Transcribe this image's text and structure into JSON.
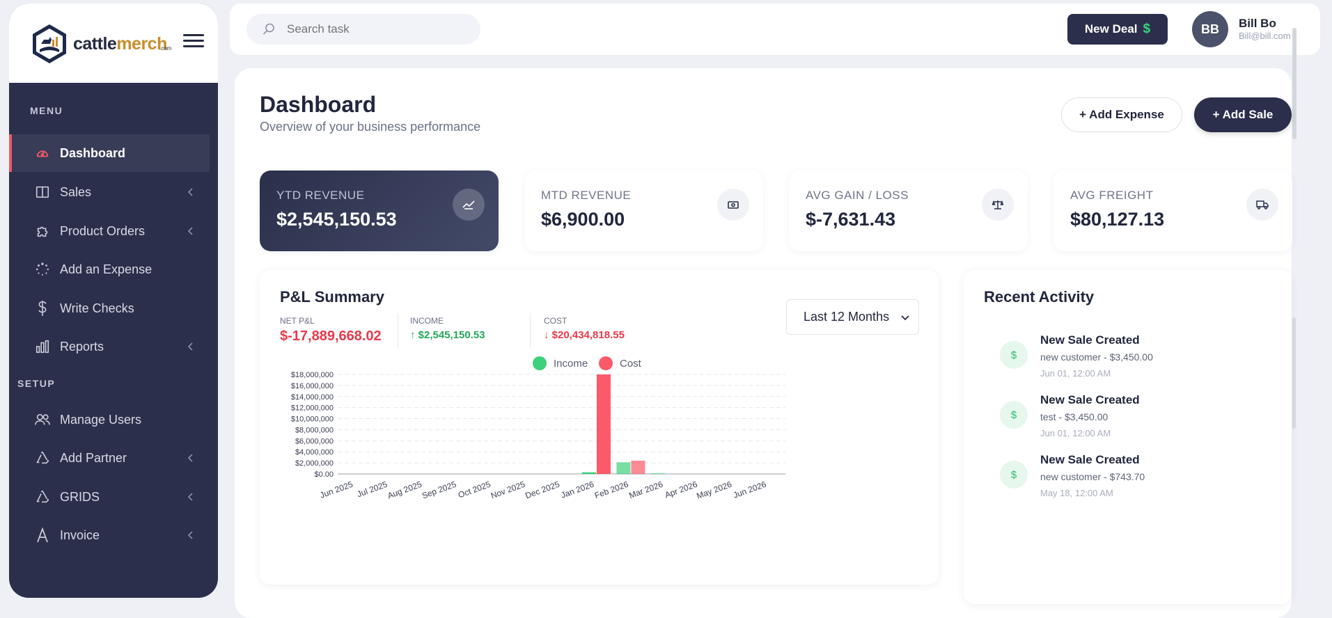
{
  "brand": {
    "name_part1": "cattle",
    "name_part2": "merch",
    "suffix": ".com"
  },
  "sidebar": {
    "menu_label": "MENU",
    "setup_label": "SETUP",
    "items": [
      {
        "label": "Dashboard",
        "icon": "gauge-icon"
      },
      {
        "label": "Sales",
        "icon": "book-icon"
      },
      {
        "label": "Product Orders",
        "icon": "puzzle-icon"
      },
      {
        "label": "Add an Expense",
        "icon": "loader-icon"
      },
      {
        "label": "Write Checks",
        "icon": "dollar-icon"
      },
      {
        "label": "Reports",
        "icon": "bar-chart-icon"
      },
      {
        "label": "Manage Users",
        "icon": "users-icon"
      },
      {
        "label": "Add Partner",
        "icon": "recycle-icon"
      },
      {
        "label": "GRIDS",
        "icon": "recycle-icon"
      },
      {
        "label": "Invoice",
        "icon": "letter-a-icon"
      }
    ]
  },
  "topbar": {
    "search_placeholder": "Search task",
    "new_deal_label": "New Deal",
    "new_deal_symbol": "$",
    "user": {
      "initials": "BB",
      "name": "Bill Bo",
      "email": "Bill@bill.com"
    }
  },
  "page": {
    "title": "Dashboard",
    "subtitle": "Overview of your business performance",
    "add_expense_label": "+ Add Expense",
    "add_sale_label": "+ Add Sale"
  },
  "stats": [
    {
      "label": "YTD REVENUE",
      "value": "$2,545,150.53"
    },
    {
      "label": "MTD REVENUE",
      "value": "$6,900.00"
    },
    {
      "label": "AVG GAIN / LOSS",
      "value": "$-7,631.43"
    },
    {
      "label": "AVG FREIGHT",
      "value": "$80,127.13"
    }
  ],
  "pl": {
    "title": "P&L Summary",
    "net_label": "NET P&L",
    "net_value": "$-17,889,668.02",
    "income_label": "INCOME",
    "income_value": "↑ $2,545,150.53",
    "cost_label": "COST",
    "cost_value": "↓ $20,434,818.55",
    "range_selected": "Last 12 Months"
  },
  "chart_data": {
    "type": "bar",
    "categories": [
      "Jun 2025",
      "Jul 2025",
      "Aug 2025",
      "Sep 2025",
      "Oct 2025",
      "Nov 2025",
      "Dec 2025",
      "Jan 2026",
      "Feb 2026",
      "Mar 2026",
      "Apr 2026",
      "May 2026",
      "Jun 2026"
    ],
    "series": [
      {
        "name": "Income",
        "color": "#3ed07a",
        "values": [
          0,
          0,
          0,
          0,
          0,
          0,
          0,
          300000,
          2100000,
          100000,
          0,
          0,
          0
        ]
      },
      {
        "name": "Cost",
        "color": "#fb5a6a",
        "values": [
          0,
          0,
          0,
          0,
          0,
          0,
          0,
          18000000,
          2400000,
          0,
          0,
          0,
          0
        ]
      }
    ],
    "yticks": [
      "$0.00",
      "$2,000,000",
      "$4,000,000",
      "$6,000,000",
      "$8,000,000",
      "$10,000,000",
      "$12,000,000",
      "$14,000,000",
      "$16,000,000",
      "$18,000,000"
    ],
    "ylim": [
      0,
      18000000
    ],
    "legend": "top-center",
    "grid": true
  },
  "activity": {
    "title": "Recent Activity",
    "items": [
      {
        "title": "New Sale Created",
        "detail": "new customer - $3,450.00",
        "time": "Jun 01, 12:00 AM"
      },
      {
        "title": "New Sale Created",
        "detail": "test - $3,450.00",
        "time": "Jun 01, 12:00 AM"
      },
      {
        "title": "New Sale Created",
        "detail": "new customer - $743.70",
        "time": "May 18, 12:00 AM"
      }
    ]
  }
}
